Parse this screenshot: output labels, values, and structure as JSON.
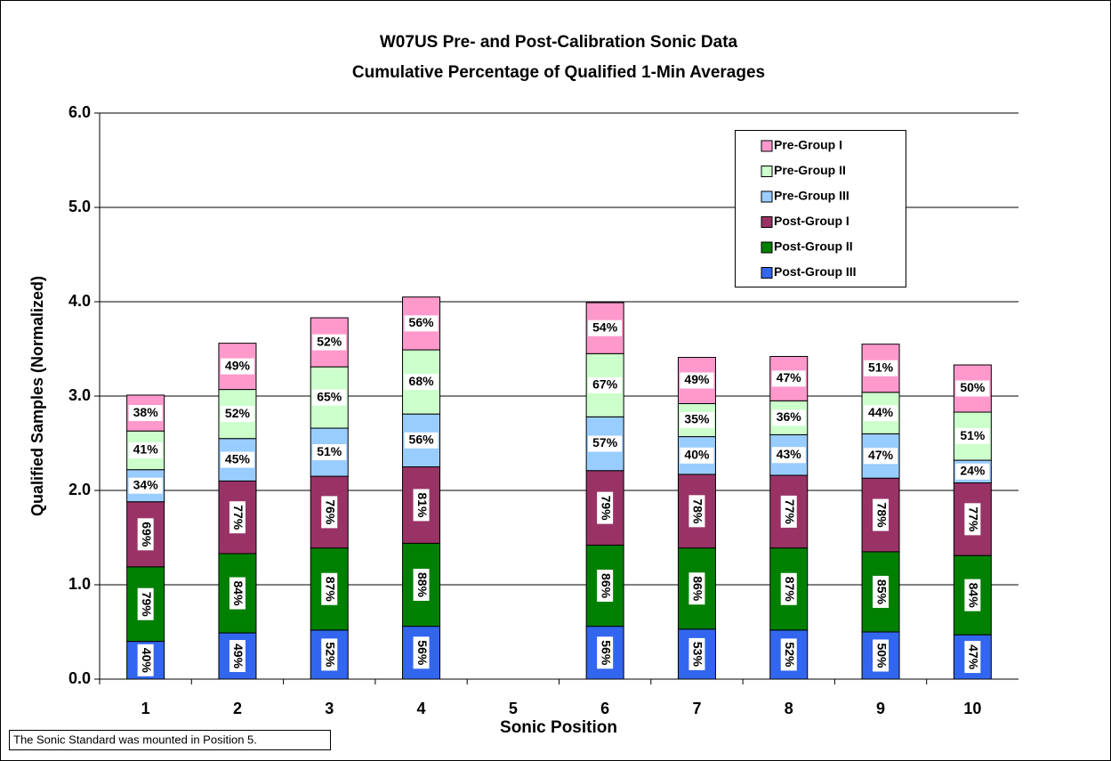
{
  "chart_data": {
    "type": "stacked-bar",
    "title": "W07US Pre- and Post-Calibration Sonic Data",
    "subtitle": "Cumulative Percentage of Qualified 1-Min Averages",
    "x_label": "Sonic Position",
    "y_label": "Qualified Samples (Normalized)",
    "annotation": "The Sonic Standard was mounted in Position 5.",
    "categories": [
      "1",
      "2",
      "3",
      "4",
      "5",
      "6",
      "7",
      "8",
      "9",
      "10"
    ],
    "ylim": [
      0,
      6
    ],
    "yticks": [
      {
        "value": 0,
        "label": "0.0"
      },
      {
        "value": 1,
        "label": "1.0"
      },
      {
        "value": 2,
        "label": "2.0"
      },
      {
        "value": 3,
        "label": "3.0"
      },
      {
        "value": 4,
        "label": "4.0"
      },
      {
        "value": 5,
        "label": "5.0"
      },
      {
        "value": 6,
        "label": "6.0"
      }
    ],
    "grid": true,
    "legend": "upper right",
    "series": [
      {
        "name": "Post-Group III",
        "color": "#3366ee",
        "values": [
          0.4,
          0.49,
          0.52,
          0.56,
          null,
          0.56,
          0.53,
          0.52,
          0.5,
          0.47
        ],
        "value_labels": [
          "40%",
          "49%",
          "52%",
          "56%",
          null,
          "56%",
          "53%",
          "52%",
          "50%",
          "47%"
        ]
      },
      {
        "name": "Post-Group II",
        "color": "#008000",
        "values": [
          0.79,
          0.84,
          0.87,
          0.88,
          null,
          0.86,
          0.86,
          0.87,
          0.85,
          0.84
        ],
        "value_labels": [
          "79%",
          "84%",
          "87%",
          "88%",
          null,
          "86%",
          "86%",
          "87%",
          "85%",
          "84%"
        ]
      },
      {
        "name": "Post-Group I",
        "color": "#993366",
        "values": [
          0.69,
          0.77,
          0.76,
          0.81,
          null,
          0.79,
          0.78,
          0.77,
          0.78,
          0.77
        ],
        "value_labels": [
          "69%",
          "77%",
          "76%",
          "81%",
          null,
          "79%",
          "78%",
          "77%",
          "78%",
          "77%"
        ]
      },
      {
        "name": "Pre-Group III",
        "color": "#99ccff",
        "values": [
          0.34,
          0.45,
          0.51,
          0.56,
          null,
          0.57,
          0.4,
          0.43,
          0.47,
          0.24
        ],
        "value_labels": [
          "34%",
          "45%",
          "51%",
          "56%",
          null,
          "57%",
          "40%",
          "43%",
          "47%",
          "24%"
        ]
      },
      {
        "name": "Pre-Group II",
        "color": "#ccffcc",
        "values": [
          0.41,
          0.52,
          0.65,
          0.68,
          null,
          0.67,
          0.35,
          0.36,
          0.44,
          0.51
        ],
        "value_labels": [
          "41%",
          "52%",
          "65%",
          "68%",
          null,
          "67%",
          "35%",
          "36%",
          "44%",
          "51%"
        ]
      },
      {
        "name": "Pre-Group I",
        "color": "#ff99cc",
        "values": [
          0.38,
          0.49,
          0.52,
          0.56,
          null,
          0.54,
          0.49,
          0.47,
          0.51,
          0.5
        ],
        "value_labels": [
          "38%",
          "49%",
          "52%",
          "56%",
          null,
          "54%",
          "49%",
          "47%",
          "51%",
          "50%"
        ]
      }
    ]
  }
}
